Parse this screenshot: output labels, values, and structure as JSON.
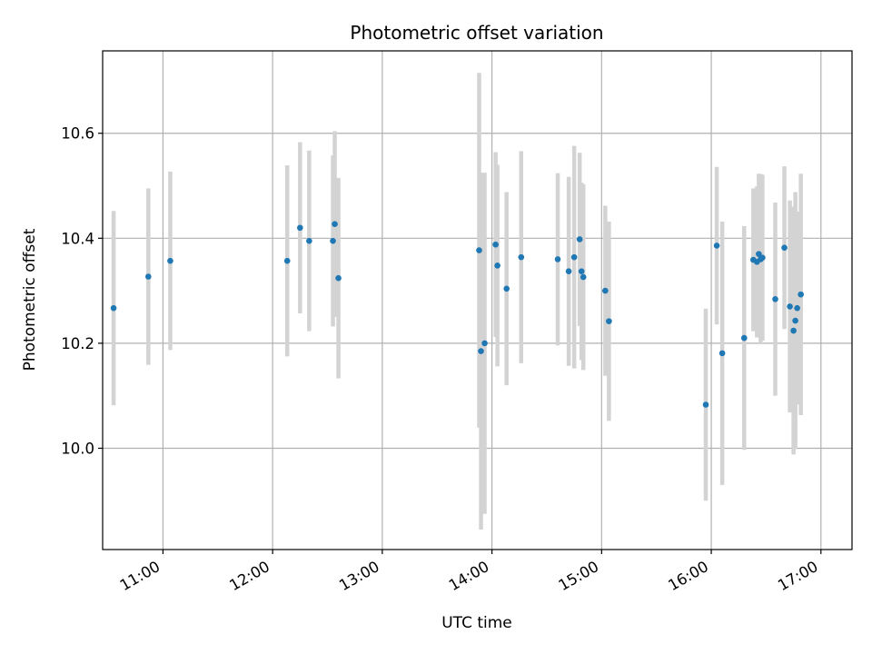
{
  "chart_data": {
    "type": "scatter",
    "title": "Photometric offset variation",
    "xlabel": "UTC time",
    "ylabel": "Photometric offset",
    "x_ticks": [
      "11:00",
      "12:00",
      "13:00",
      "14:00",
      "15:00",
      "16:00",
      "17:00"
    ],
    "y_ticks": [
      "10.0",
      "10.2",
      "10.4",
      "10.6"
    ],
    "ylim": [
      9.807,
      10.757
    ],
    "xlim": [
      "10:27",
      "17:17"
    ],
    "grid": true,
    "colors": {
      "marker": "#1f77b4",
      "errorbar": "#d3d3d3",
      "grid": "#b0b0b0"
    },
    "points": [
      {
        "t": "10:33",
        "y": 10.267,
        "err": 0.185
      },
      {
        "t": "10:52",
        "y": 10.327,
        "err": 0.168
      },
      {
        "t": "11:04",
        "y": 10.357,
        "err": 0.17
      },
      {
        "t": "12:08",
        "y": 10.357,
        "err": 0.182
      },
      {
        "t": "12:15",
        "y": 10.42,
        "err": 0.163
      },
      {
        "t": "12:20",
        "y": 10.395,
        "err": 0.172
      },
      {
        "t": "12:33",
        "y": 10.395,
        "err": 0.163
      },
      {
        "t": "12:34",
        "y": 10.427,
        "err": 0.177
      },
      {
        "t": "12:36",
        "y": 10.324,
        "err": 0.191
      },
      {
        "t": "13:53",
        "y": 10.377,
        "err": 0.338
      },
      {
        "t": "13:54",
        "y": 10.185,
        "err": 0.34
      },
      {
        "t": "13:56",
        "y": 10.2,
        "err": 0.325
      },
      {
        "t": "14:02",
        "y": 10.388,
        "err": 0.176
      },
      {
        "t": "14:03",
        "y": 10.348,
        "err": 0.192
      },
      {
        "t": "14:08",
        "y": 10.304,
        "err": 0.184
      },
      {
        "t": "14:16",
        "y": 10.364,
        "err": 0.202
      },
      {
        "t": "14:36",
        "y": 10.36,
        "err": 0.164
      },
      {
        "t": "14:42",
        "y": 10.337,
        "err": 0.18
      },
      {
        "t": "14:45",
        "y": 10.364,
        "err": 0.212
      },
      {
        "t": "14:48",
        "y": 10.398,
        "err": 0.165
      },
      {
        "t": "14:49",
        "y": 10.337,
        "err": 0.169
      },
      {
        "t": "14:50",
        "y": 10.326,
        "err": 0.177
      },
      {
        "t": "15:02",
        "y": 10.3,
        "err": 0.162
      },
      {
        "t": "15:04",
        "y": 10.242,
        "err": 0.19
      },
      {
        "t": "15:57",
        "y": 10.083,
        "err": 0.183
      },
      {
        "t": "16:03",
        "y": 10.386,
        "err": 0.15
      },
      {
        "t": "16:06",
        "y": 10.181,
        "err": 0.251
      },
      {
        "t": "16:18",
        "y": 10.21,
        "err": 0.213
      },
      {
        "t": "16:23",
        "y": 10.359,
        "err": 0.136
      },
      {
        "t": "16:25",
        "y": 10.355,
        "err": 0.144
      },
      {
        "t": "16:26",
        "y": 10.37,
        "err": 0.153
      },
      {
        "t": "16:27",
        "y": 10.36,
        "err": 0.162
      },
      {
        "t": "16:28",
        "y": 10.363,
        "err": 0.158
      },
      {
        "t": "16:35",
        "y": 10.284,
        "err": 0.184
      },
      {
        "t": "16:40",
        "y": 10.382,
        "err": 0.155
      },
      {
        "t": "16:43",
        "y": 10.27,
        "err": 0.202
      },
      {
        "t": "16:45",
        "y": 10.224,
        "err": 0.236
      },
      {
        "t": "16:46",
        "y": 10.243,
        "err": 0.245
      },
      {
        "t": "16:47",
        "y": 10.267,
        "err": 0.184
      },
      {
        "t": "16:49",
        "y": 10.293,
        "err": 0.23
      }
    ]
  }
}
